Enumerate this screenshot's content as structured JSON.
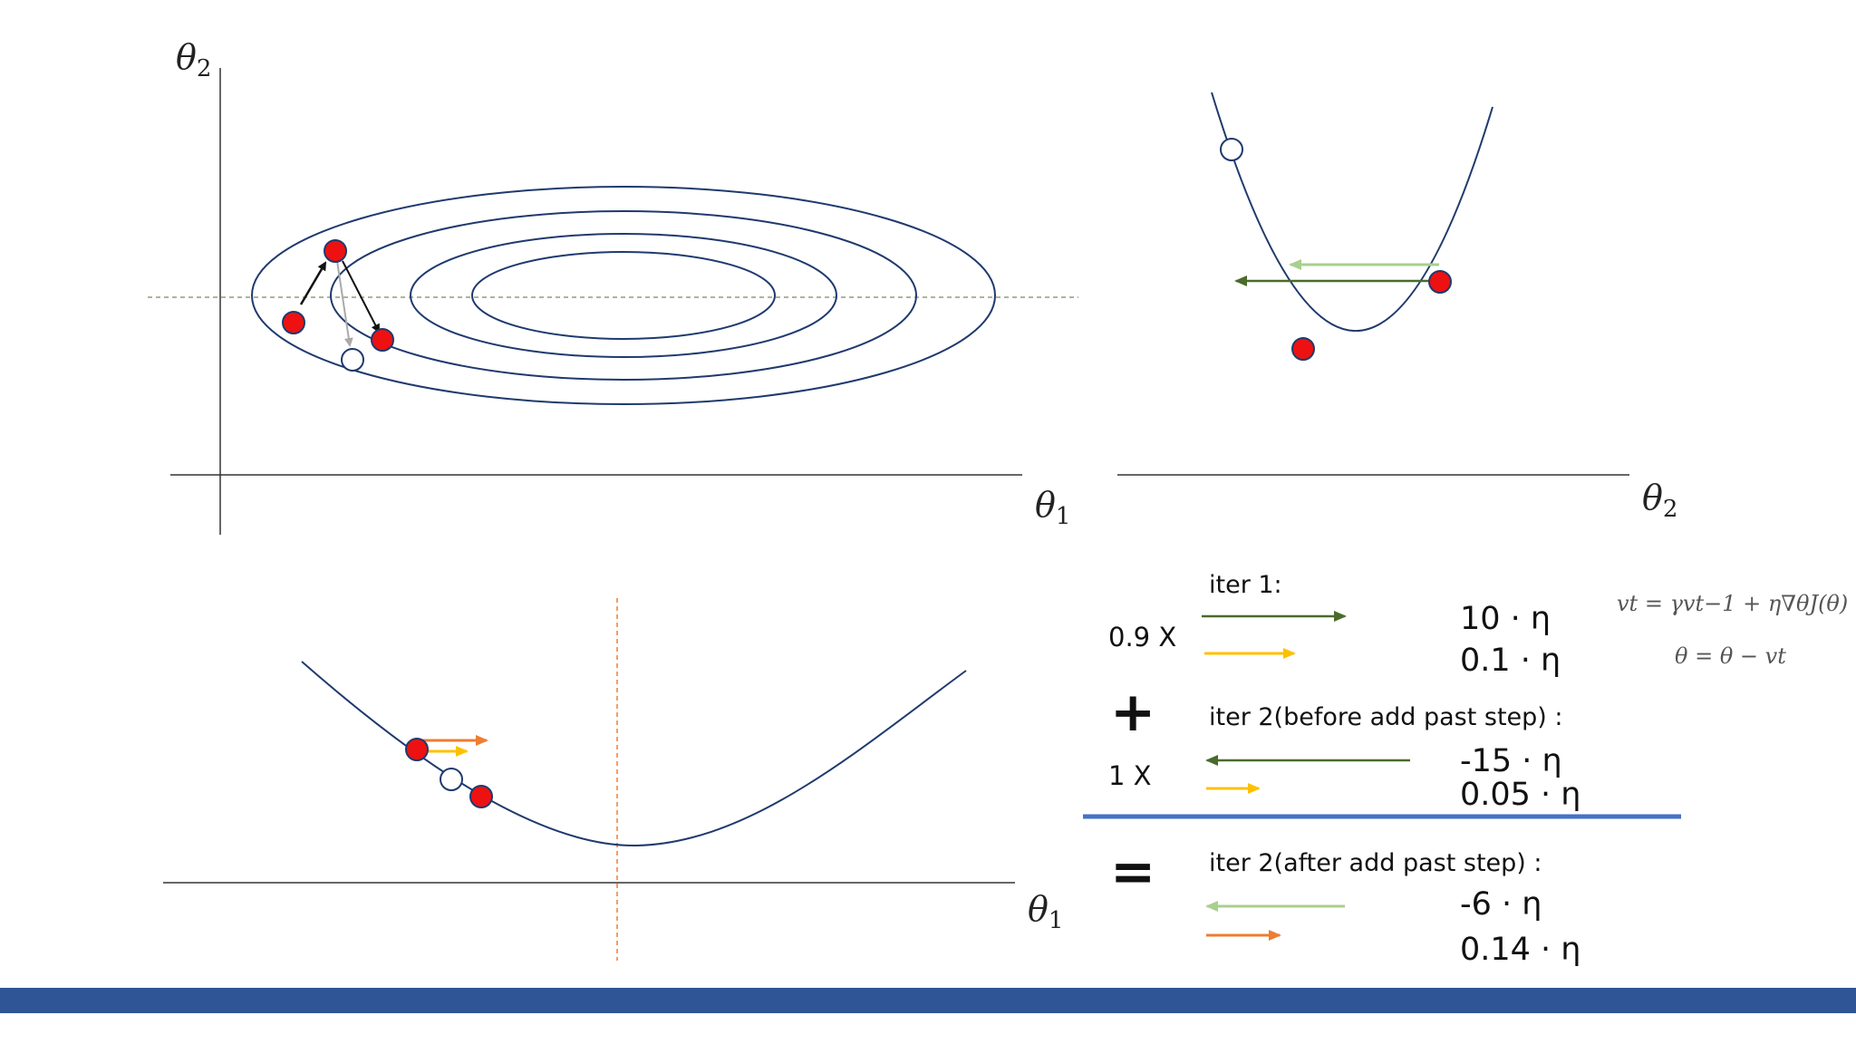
{
  "panels": {
    "contour": {
      "x_axis_label": "θ",
      "x_axis_sub": "1",
      "y_axis_label": "θ",
      "y_axis_sub": "2"
    },
    "parabola_theta2": {
      "x_axis_label": "θ",
      "x_axis_sub": "2"
    },
    "parabola_theta1": {
      "x_axis_label": "θ",
      "x_axis_sub": "1"
    }
  },
  "momentum": {
    "iter1_label": "iter 1:",
    "iter1_coef": "0.9 X",
    "iter1_values": [
      "10 · η",
      "0.1 · η"
    ],
    "plus_sign": "+",
    "iter2_before_label": "iter 2(before add past step) :",
    "iter2_before_coef": "1 X",
    "iter2_before_values": [
      "-15 · η",
      "0.05 · η"
    ],
    "equals_sign": "=",
    "iter2_after_label": "iter 2(after add past step) :",
    "iter2_after_values": [
      "-6 · η",
      "0.14 · η"
    ]
  },
  "formulas": {
    "velocity": "vt = γvt−1 + η∇θJ(θ)",
    "update": "θ = θ − vt"
  },
  "colors": {
    "curve": "#1f3a6e",
    "point_fill": "#ee1111",
    "dark_green_arrow": "#4a6b2a",
    "light_green_arrow": "#a8d08d",
    "yellow_arrow": "#ffc000",
    "orange_arrow": "#ed7d31",
    "divider": "#4472c4",
    "bottom_bar": "#2f5597"
  }
}
